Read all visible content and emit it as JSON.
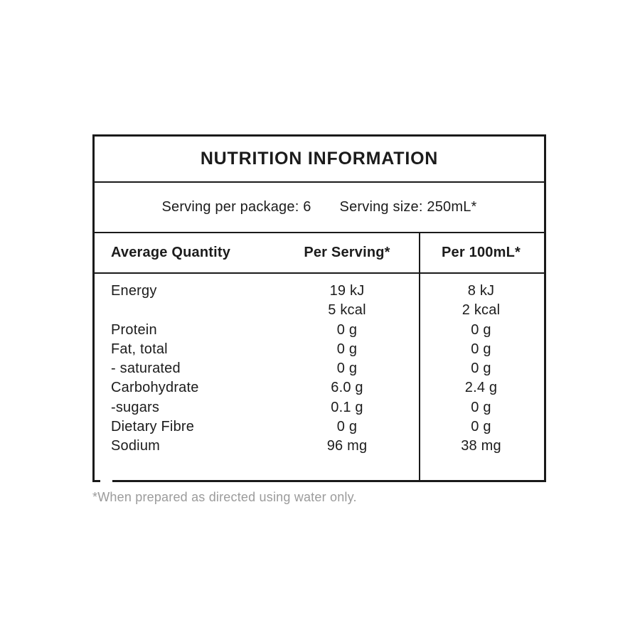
{
  "label": {
    "title": "NUTRITION INFORMATION",
    "serving_per_package": "Serving per package: 6",
    "serving_size": "Serving size: 250mL*",
    "columns": {
      "quantity": "Average Quantity",
      "per_serving": "Per Serving*",
      "per_100ml": "Per 100mL*"
    },
    "rows": [
      {
        "name": "Energy",
        "per_serving": "19 kJ",
        "per_100ml": "8 kJ"
      },
      {
        "name": "",
        "per_serving": "5 kcal",
        "per_100ml": "2 kcal"
      },
      {
        "name": "Protein",
        "per_serving": "0 g",
        "per_100ml": "0 g"
      },
      {
        "name": "Fat, total",
        "per_serving": "0 g",
        "per_100ml": "0 g"
      },
      {
        "name": "- saturated",
        "per_serving": "0 g",
        "per_100ml": "0 g"
      },
      {
        "name": "Carbohydrate",
        "per_serving": "6.0 g",
        "per_100ml": "2.4 g"
      },
      {
        "name": "-sugars",
        "per_serving": "0.1 g",
        "per_100ml": "0 g"
      },
      {
        "name": "Dietary Fibre",
        "per_serving": "0 g",
        "per_100ml": "0 g"
      },
      {
        "name": "Sodium",
        "per_serving": "96 mg",
        "per_100ml": "38 mg"
      }
    ],
    "footnote": "*When prepared as directed using water only."
  },
  "colors": {
    "background": "#ffffff",
    "border": "#1a1a1a",
    "text": "#1c1c1c",
    "footnote_text": "#9b9b9b"
  }
}
